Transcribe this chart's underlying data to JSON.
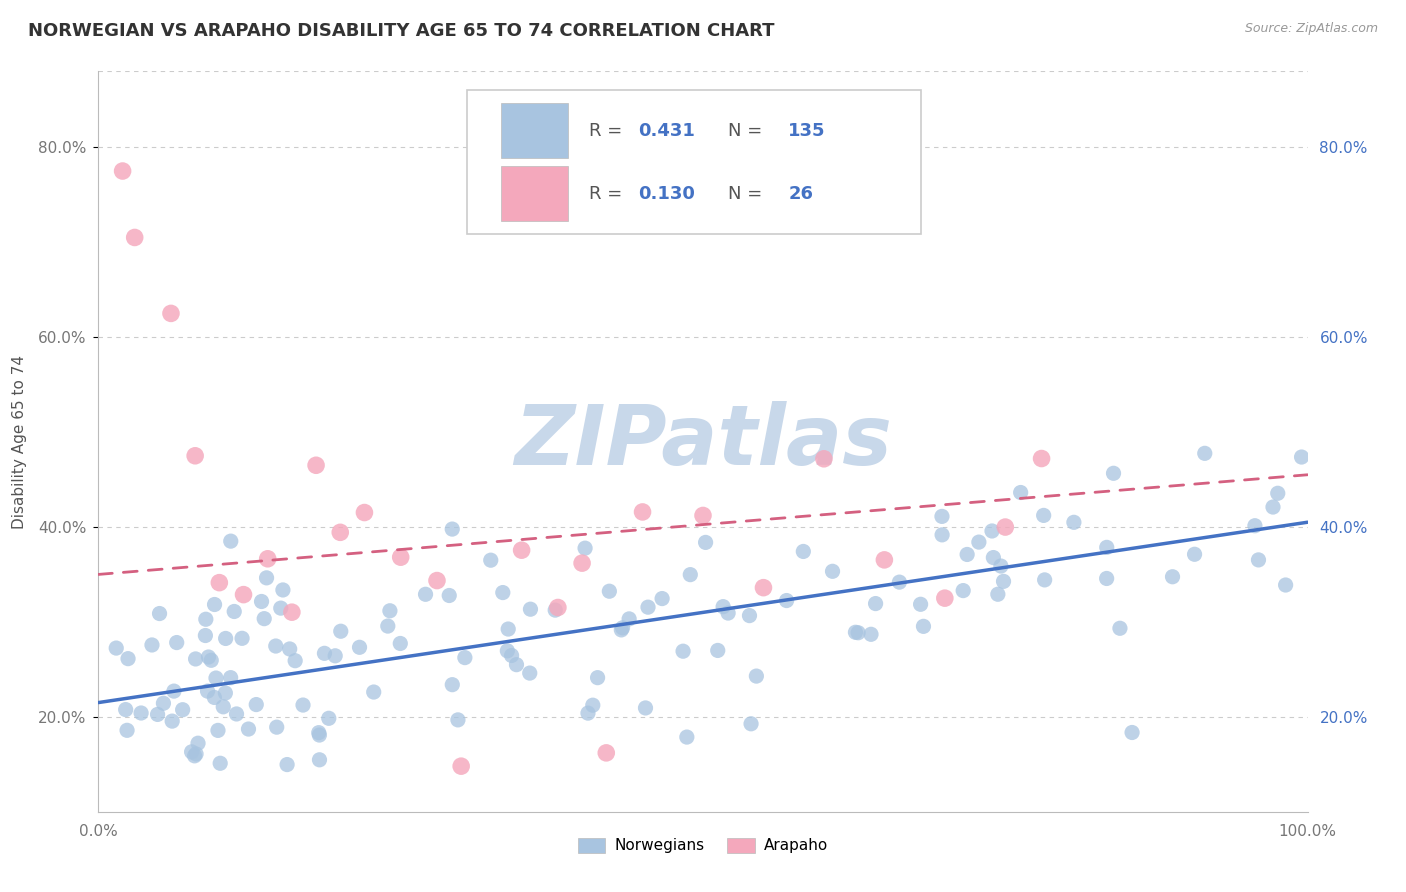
{
  "title": "NORWEGIAN VS ARAPAHO DISABILITY AGE 65 TO 74 CORRELATION CHART",
  "source_text": "Source: ZipAtlas.com",
  "ylabel": "Disability Age 65 to 74",
  "xlim": [
    0.0,
    1.0
  ],
  "ylim": [
    0.1,
    0.88
  ],
  "yticks": [
    0.2,
    0.4,
    0.6,
    0.8
  ],
  "ytick_labels": [
    "20.0%",
    "40.0%",
    "60.0%",
    "80.0%"
  ],
  "xticks": [
    0.0,
    0.2,
    0.4,
    0.6,
    0.8,
    1.0
  ],
  "xtick_labels": [
    "0.0%",
    "",
    "",
    "",
    "",
    "100.0%"
  ],
  "norwegian_R": 0.431,
  "norwegian_N": 135,
  "arapaho_R": 0.13,
  "arapaho_N": 26,
  "norwegian_color": "#a8c4e0",
  "norwegian_line_color": "#4472c4",
  "arapaho_color": "#f4a8bc",
  "arapaho_line_color": "#d46080",
  "watermark": "ZIPatlas",
  "watermark_color": "#c8d8ea",
  "background_color": "#ffffff",
  "grid_color": "#cccccc",
  "title_fontsize": 13,
  "legend_text_color": "#555555",
  "legend_N_color": "#4472c4",
  "norwegian_trend_x0": 0.0,
  "norwegian_trend_y0": 0.215,
  "norwegian_trend_x1": 1.0,
  "norwegian_trend_y1": 0.405,
  "arapaho_trend_x0": 0.0,
  "arapaho_trend_y0": 0.35,
  "arapaho_trend_x1": 1.0,
  "arapaho_trend_y1": 0.455
}
